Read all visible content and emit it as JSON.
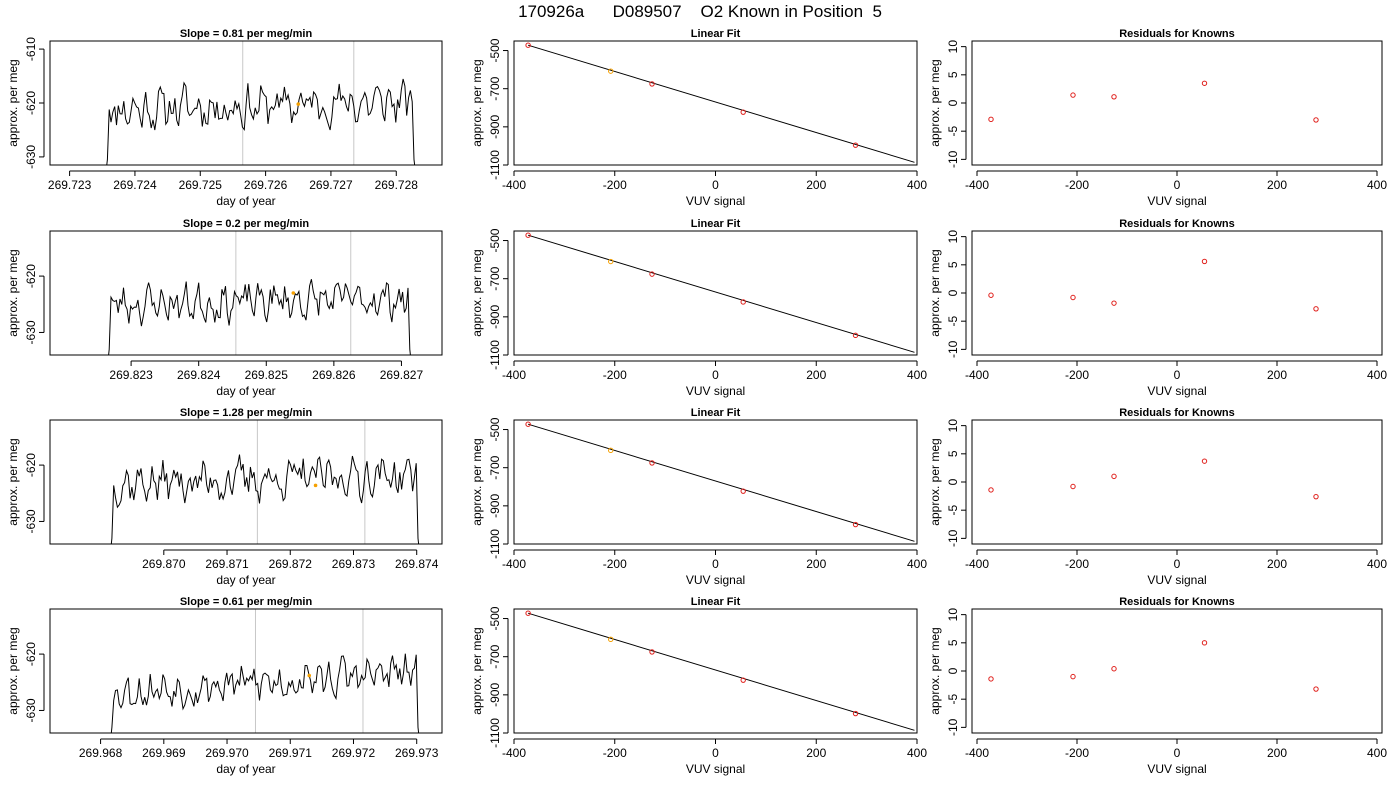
{
  "page": {
    "title": "170926a      D089507    O2 Known in Position  5"
  },
  "chart_data": [
    {
      "type": "line",
      "panel": "time-series",
      "title": "Slope =  0.81  per meg/min",
      "xlabel": "day of year",
      "ylabel": "approx. per meg",
      "xlim": [
        269.7227,
        269.7287
      ],
      "ylim": [
        -631.5,
        -608.5
      ],
      "xticks": [
        269.723,
        269.724,
        269.725,
        269.726,
        269.727,
        269.728
      ],
      "xticklabels": [
        "269.723",
        "269.724",
        "269.725",
        "269.726",
        "269.727",
        "269.728"
      ],
      "yticks": [
        -610,
        -620,
        -630
      ],
      "yticklabels": [
        "-610",
        "-620",
        "-630"
      ],
      "vlines": [
        269.72565,
        269.72735
      ],
      "trace": {
        "start": 269.72355,
        "end": 269.7283,
        "base": -620.5,
        "trend": 1.5,
        "amp": 4.5,
        "seed": 11
      },
      "marker": {
        "x": 269.7265,
        "y": -620.2
      }
    },
    {
      "type": "line",
      "panel": "time-series",
      "title": "Slope =  0.2  per meg/min",
      "xlabel": "day of year",
      "ylabel": "approx. per meg",
      "xlim": [
        269.8218,
        269.8276
      ],
      "ylim": [
        -634.0,
        -612.0
      ],
      "xticks": [
        269.823,
        269.824,
        269.825,
        269.826,
        269.827
      ],
      "xticklabels": [
        "269.823",
        "269.824",
        "269.825",
        "269.826",
        "269.827"
      ],
      "yticks": [
        -620,
        -630
      ],
      "yticklabels": [
        "-620",
        "-630"
      ],
      "vlines": [
        269.82455,
        269.82625
      ],
      "trace": {
        "start": 269.82265,
        "end": 269.82715,
        "base": -624.5,
        "trend": 1.0,
        "amp": 3.8,
        "seed": 23
      },
      "marker": {
        "x": 269.8254,
        "y": -623.0
      }
    },
    {
      "type": "line",
      "panel": "time-series",
      "title": "Slope =  1.28  per meg/min",
      "xlabel": "day of year",
      "ylabel": "approx. per meg",
      "xlim": [
        269.8682,
        269.8744
      ],
      "ylim": [
        -634.0,
        -612.0
      ],
      "xticks": [
        269.87,
        269.871,
        269.872,
        269.873,
        269.874
      ],
      "xticklabels": [
        "269.870",
        "269.871",
        "269.872",
        "269.873",
        "269.874"
      ],
      "yticks": [
        -620,
        -630
      ],
      "yticklabels": [
        "-620",
        "-630"
      ],
      "vlines": [
        269.87148,
        269.87318
      ],
      "trace": {
        "start": 269.86915,
        "end": 269.87405,
        "base": -622.5,
        "trend": 1.5,
        "amp": 4.2,
        "seed": 37
      },
      "marker": {
        "x": 269.8724,
        "y": -623.6
      }
    },
    {
      "type": "line",
      "panel": "time-series",
      "title": "Slope =  0.61  per meg/min",
      "xlabel": "day of year",
      "ylabel": "approx. per meg",
      "xlim": [
        269.9672,
        269.9734
      ],
      "ylim": [
        -634.0,
        -612.0
      ],
      "xticks": [
        269.968,
        269.969,
        269.97,
        269.971,
        269.972,
        269.973
      ],
      "xticklabels": [
        "269.968",
        "269.969",
        "269.970",
        "269.971",
        "269.972",
        "269.973"
      ],
      "yticks": [
        -620,
        -630
      ],
      "yticklabels": [
        "-620",
        "-630"
      ],
      "vlines": [
        269.97045,
        269.97215
      ],
      "trace": {
        "start": 269.96815,
        "end": 269.97305,
        "base": -625.0,
        "trend": 3.5,
        "amp": 3.8,
        "seed": 53
      },
      "marker": {
        "x": 269.9713,
        "y": -623.8
      }
    },
    {
      "type": "scatter",
      "panel": "linear-fit",
      "title": "Linear Fit",
      "xlabel": "VUV signal",
      "ylabel": "approx. per meg",
      "xlim": [
        -400,
        400
      ],
      "ylim": [
        -1100,
        -450
      ],
      "xticks": [
        -400,
        -200,
        0,
        200,
        400
      ],
      "xticklabels": [
        "-400",
        "-200",
        "0",
        "200",
        "400"
      ],
      "yticks": [
        -500,
        -700,
        -900,
        -1100
      ],
      "yticklabels": [
        "-500",
        "-700",
        "-900",
        "-1100"
      ],
      "points": {
        "x": [
          -372,
          -208,
          -126,
          55,
          278
        ],
        "y": [
          -472,
          -608,
          -675,
          -823,
          -996
        ]
      },
      "highlight_index": 1,
      "fit": {
        "x": [
          -372,
          395
        ],
        "y": [
          -472,
          -1086
        ]
      }
    },
    {
      "type": "scatter",
      "panel": "linear-fit",
      "title": "Linear Fit",
      "xlabel": "VUV signal",
      "ylabel": "approx. per meg",
      "xlim": [
        -400,
        400
      ],
      "ylim": [
        -1100,
        -450
      ],
      "xticks": [
        -400,
        -200,
        0,
        200,
        400
      ],
      "xticklabels": [
        "-400",
        "-200",
        "0",
        "200",
        "400"
      ],
      "yticks": [
        -500,
        -700,
        -900,
        -1100
      ],
      "yticklabels": [
        "-500",
        "-700",
        "-900",
        "-1100"
      ],
      "points": {
        "x": [
          -372,
          -208,
          -126,
          55,
          278
        ],
        "y": [
          -472,
          -610,
          -676,
          -822,
          -997
        ]
      },
      "highlight_index": 1,
      "fit": {
        "x": [
          -372,
          395
        ],
        "y": [
          -472,
          -1086
        ]
      }
    },
    {
      "type": "scatter",
      "panel": "linear-fit",
      "title": "Linear Fit",
      "xlabel": "VUV signal",
      "ylabel": "approx. per meg",
      "xlim": [
        -400,
        400
      ],
      "ylim": [
        -1100,
        -450
      ],
      "xticks": [
        -400,
        -200,
        0,
        200,
        400
      ],
      "xticklabels": [
        "-400",
        "-200",
        "0",
        "200",
        "400"
      ],
      "yticks": [
        -500,
        -700,
        -900,
        -1100
      ],
      "yticklabels": [
        "-500",
        "-700",
        "-900",
        "-1100"
      ],
      "points": {
        "x": [
          -372,
          -208,
          -126,
          55,
          278
        ],
        "y": [
          -472,
          -609,
          -675,
          -823,
          -998
        ]
      },
      "highlight_index": 1,
      "fit": {
        "x": [
          -372,
          395
        ],
        "y": [
          -472,
          -1086
        ]
      }
    },
    {
      "type": "scatter",
      "panel": "linear-fit",
      "title": "Linear Fit",
      "xlabel": "VUV signal",
      "ylabel": "approx. per meg",
      "xlim": [
        -400,
        400
      ],
      "ylim": [
        -1100,
        -450
      ],
      "xticks": [
        -400,
        -200,
        0,
        200,
        400
      ],
      "xticklabels": [
        "-400",
        "-200",
        "0",
        "200",
        "400"
      ],
      "yticks": [
        -500,
        -700,
        -900,
        -1100
      ],
      "yticklabels": [
        "-500",
        "-700",
        "-900",
        "-1100"
      ],
      "points": {
        "x": [
          -372,
          -208,
          -126,
          55,
          278
        ],
        "y": [
          -472,
          -609,
          -675,
          -823,
          -998
        ]
      },
      "highlight_index": 1,
      "fit": {
        "x": [
          -372,
          395
        ],
        "y": [
          -472,
          -1086
        ]
      }
    },
    {
      "type": "scatter",
      "panel": "residuals",
      "title": "Residuals for Knowns",
      "xlabel": "VUV signal",
      "ylabel": "approx. per meg",
      "xlim": [
        -410,
        410
      ],
      "ylim": [
        -11,
        11
      ],
      "xticks": [
        -400,
        -200,
        0,
        200,
        400
      ],
      "xticklabels": [
        "-400",
        "-200",
        "0",
        "200",
        "400"
      ],
      "yticks": [
        10,
        5,
        0,
        -5,
        -10
      ],
      "yticklabels": [
        "10",
        "5",
        "0",
        "-5",
        "-10"
      ],
      "points": {
        "x": [
          -372,
          -208,
          -126,
          55,
          278
        ],
        "y": [
          -2.9,
          1.4,
          1.1,
          3.5,
          -3.0
        ]
      }
    },
    {
      "type": "scatter",
      "panel": "residuals",
      "title": "Residuals for Knowns",
      "xlabel": "VUV signal",
      "ylabel": "approx. per meg",
      "xlim": [
        -410,
        410
      ],
      "ylim": [
        -11,
        11
      ],
      "xticks": [
        -400,
        -200,
        0,
        200,
        400
      ],
      "xticklabels": [
        "-400",
        "-200",
        "0",
        "200",
        "400"
      ],
      "yticks": [
        10,
        5,
        0,
        -5,
        -10
      ],
      "yticklabels": [
        "10",
        "5",
        "0",
        "-5",
        "-10"
      ],
      "points": {
        "x": [
          -372,
          -208,
          -126,
          55,
          278
        ],
        "y": [
          -0.4,
          -0.8,
          -1.8,
          5.6,
          -2.8
        ]
      }
    },
    {
      "type": "scatter",
      "panel": "residuals",
      "title": "Residuals for Knowns",
      "xlabel": "VUV signal",
      "ylabel": "approx. per meg",
      "xlim": [
        -410,
        410
      ],
      "ylim": [
        -11,
        11
      ],
      "xticks": [
        -400,
        -200,
        0,
        200,
        400
      ],
      "xticklabels": [
        "-400",
        "-200",
        "0",
        "200",
        "400"
      ],
      "yticks": [
        10,
        5,
        0,
        -5,
        -10
      ],
      "yticklabels": [
        "10",
        "5",
        "0",
        "-5",
        "-10"
      ],
      "points": {
        "x": [
          -372,
          -208,
          -126,
          55,
          278
        ],
        "y": [
          -1.4,
          -0.8,
          1.0,
          3.7,
          -2.6
        ]
      }
    },
    {
      "type": "scatter",
      "panel": "residuals",
      "title": "Residuals for Knowns",
      "xlabel": "VUV signal",
      "ylabel": "approx. per meg",
      "xlim": [
        -410,
        410
      ],
      "ylim": [
        -11,
        11
      ],
      "xticks": [
        -400,
        -200,
        0,
        200,
        400
      ],
      "xticklabels": [
        "-400",
        "-200",
        "0",
        "200",
        "400"
      ],
      "yticks": [
        10,
        5,
        0,
        -5,
        -10
      ],
      "yticklabels": [
        "10",
        "5",
        "0",
        "-5",
        "-10"
      ],
      "points": {
        "x": [
          -372,
          -208,
          -126,
          55,
          278
        ],
        "y": [
          -1.4,
          -1.0,
          0.4,
          5.0,
          -3.2
        ]
      }
    }
  ],
  "colors": {
    "trace": "#000000",
    "vline": "#c8c8c8",
    "marker_time": "#f5a000",
    "point": "#e0201c",
    "point_highlight": "#f5a000",
    "fit_line": "#000000",
    "axis": "#000000"
  }
}
